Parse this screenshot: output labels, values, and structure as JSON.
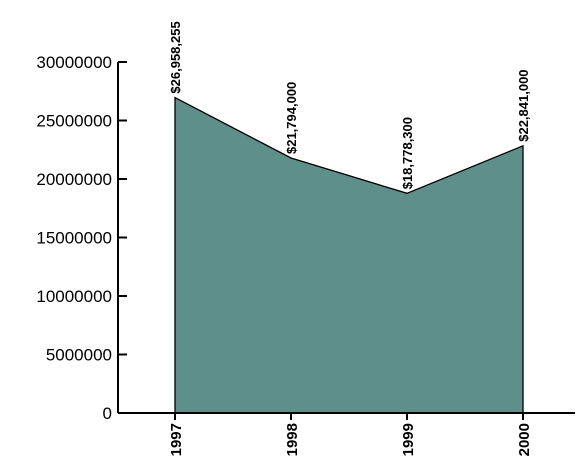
{
  "chart_data": {
    "type": "area",
    "title": "",
    "xlabel": "",
    "ylabel": "",
    "categories": [
      "1997",
      "1998",
      "1999",
      "2000"
    ],
    "values": [
      26958255,
      21794000,
      18778300,
      22841000
    ],
    "data_labels": [
      "$26,958,255",
      "$21,794,000",
      "$18,778,300",
      "$22,841,000"
    ],
    "ylim": [
      0,
      30000000
    ],
    "yticks": [
      0,
      5000000,
      10000000,
      15000000,
      20000000,
      25000000,
      30000000
    ],
    "ytick_labels": [
      "0",
      "5000000",
      "10000000",
      "15000000",
      "20000000",
      "25000000",
      "30000000"
    ],
    "grid": false,
    "legend": "none",
    "fill_color": "#5f8f8b",
    "line_color": "#000000"
  }
}
